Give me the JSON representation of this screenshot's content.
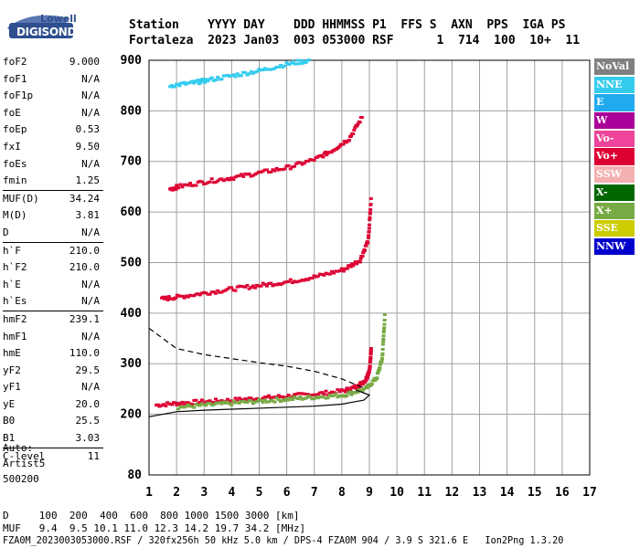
{
  "logo": {
    "brand": "Lowell",
    "product": "DIGISONDE"
  },
  "header": {
    "row1": "Station    YYYY DAY    DDD HHMMSS P1  FFS S  AXN  PPS  IGA PS",
    "row2": "Fortaleza  2023 Jan03  003 053000 RSF      1  714  100  10+  11"
  },
  "params": [
    {
      "name": "foF2",
      "value": "9.000"
    },
    {
      "name": "foF1",
      "value": "N/A"
    },
    {
      "name": "foF1p",
      "value": "N/A"
    },
    {
      "name": "foE",
      "value": "N/A"
    },
    {
      "name": "foEp",
      "value": "0.53"
    },
    {
      "name": "fxI",
      "value": "9.50"
    },
    {
      "name": "foEs",
      "value": "N/A"
    },
    {
      "name": "fmin",
      "value": "1.25"
    },
    {
      "name": "MUF(D)",
      "value": "34.24"
    },
    {
      "name": "M(D)",
      "value": "3.81"
    },
    {
      "name": "D",
      "value": "N/A"
    },
    {
      "name": "h`F",
      "value": "210.0"
    },
    {
      "name": "h`F2",
      "value": "210.0"
    },
    {
      "name": "h`E",
      "value": "N/A"
    },
    {
      "name": "h`Es",
      "value": "N/A"
    },
    {
      "name": "hmF2",
      "value": "239.1"
    },
    {
      "name": "hmF1",
      "value": "N/A"
    },
    {
      "name": "hmE",
      "value": "110.0"
    },
    {
      "name": "yF2",
      "value": "29.5"
    },
    {
      "name": "yF1",
      "value": "N/A"
    },
    {
      "name": "yE",
      "value": "20.0"
    },
    {
      "name": "B0",
      "value": "25.5"
    },
    {
      "name": "B1",
      "value": "3.03"
    },
    {
      "name": "C-level",
      "value": "11"
    }
  ],
  "autoscale": {
    "line1": "Auto:",
    "line2": "Artist5",
    "line3": "500200"
  },
  "footer": {
    "row_d": "D     100  200  400  600  800 1000 1500 3000 [km]",
    "row_muf": "MUF   9.4  9.5 10.1 11.0 12.3 14.2 19.7 34.2 [MHz]",
    "row_file": "FZA0M_2023003053000.RSF / 320fx256h 50 kHz 5.0 km / DPS-4 FZA0M 904 / 3.9 S 321.6 E   Ion2Png 1.3.20"
  },
  "legend": [
    {
      "label": "NoVal",
      "color": "#808080"
    },
    {
      "label": "NNE",
      "color": "#33ccee"
    },
    {
      "label": "E",
      "color": "#22aaee"
    },
    {
      "label": "W",
      "color": "#aa0099"
    },
    {
      "label": "Vo-",
      "color": "#ee4499"
    },
    {
      "label": "Vo+",
      "color": "#dd0033"
    },
    {
      "label": "SSW",
      "color": "#f4b0b0"
    },
    {
      "label": "X-",
      "color": "#006600"
    },
    {
      "label": "X+",
      "color": "#77aa44"
    },
    {
      "label": "SSE",
      "color": "#cccc00"
    },
    {
      "label": "NNW",
      "color": "#0000cc"
    }
  ],
  "chart_data": {
    "type": "scatter",
    "xlim": [
      1,
      17
    ],
    "ylim": [
      80,
      900
    ],
    "xticks": [
      1,
      2,
      3,
      4,
      5,
      6,
      7,
      8,
      9,
      10,
      11,
      12,
      13,
      14,
      15,
      16,
      17
    ],
    "yticks": [
      80,
      200,
      300,
      400,
      500,
      600,
      700,
      800,
      900
    ],
    "grid": true,
    "traces": [
      {
        "name": "1-hop O trace",
        "color": "#dd0033",
        "x": [
          1.2,
          2,
          3,
          4,
          5,
          6,
          7,
          8,
          8.5,
          8.8,
          8.95,
          9.0
        ],
        "y": [
          218,
          222,
          225,
          228,
          232,
          236,
          240,
          246,
          255,
          268,
          290,
          335
        ]
      },
      {
        "name": "1-hop X trace",
        "color": "#77aa44",
        "x": [
          2,
          3,
          4,
          5,
          6,
          7,
          8,
          8.8,
          9.2,
          9.4,
          9.5
        ],
        "y": [
          214,
          218,
          222,
          226,
          230,
          234,
          238,
          250,
          272,
          310,
          400
        ]
      },
      {
        "name": "2-hop O trace",
        "color": "#dd0033",
        "x": [
          1.4,
          2,
          3,
          4,
          5,
          6,
          7,
          8,
          8.6,
          8.9,
          9.0
        ],
        "y": [
          428,
          432,
          440,
          448,
          455,
          462,
          472,
          486,
          505,
          545,
          630
        ]
      },
      {
        "name": "3-hop trace",
        "color": "#dd0033",
        "x": [
          1.7,
          2,
          3,
          4,
          5,
          6,
          7,
          7.6,
          8.2,
          8.7
        ],
        "y": [
          645,
          650,
          660,
          668,
          678,
          688,
          705,
          722,
          745,
          790
        ]
      },
      {
        "name": "4-hop trace",
        "color": "#33ccee",
        "x": [
          1.7,
          2.5,
          3,
          4,
          5,
          6,
          6.8
        ],
        "y": [
          850,
          855,
          860,
          870,
          880,
          893,
          900
        ]
      }
    ],
    "profile_dashed": {
      "x": [
        1.0,
        2,
        3,
        4,
        5,
        6,
        7,
        8,
        8.8
      ],
      "y": [
        370,
        330,
        318,
        310,
        302,
        295,
        285,
        270,
        252
      ]
    },
    "profile_solid": {
      "x": [
        1.0,
        2,
        3,
        4,
        5,
        6,
        7,
        8,
        8.8,
        9.0,
        8.5
      ],
      "y": [
        195,
        205,
        208,
        210,
        212,
        214,
        216,
        220,
        228,
        238,
        248
      ]
    }
  }
}
